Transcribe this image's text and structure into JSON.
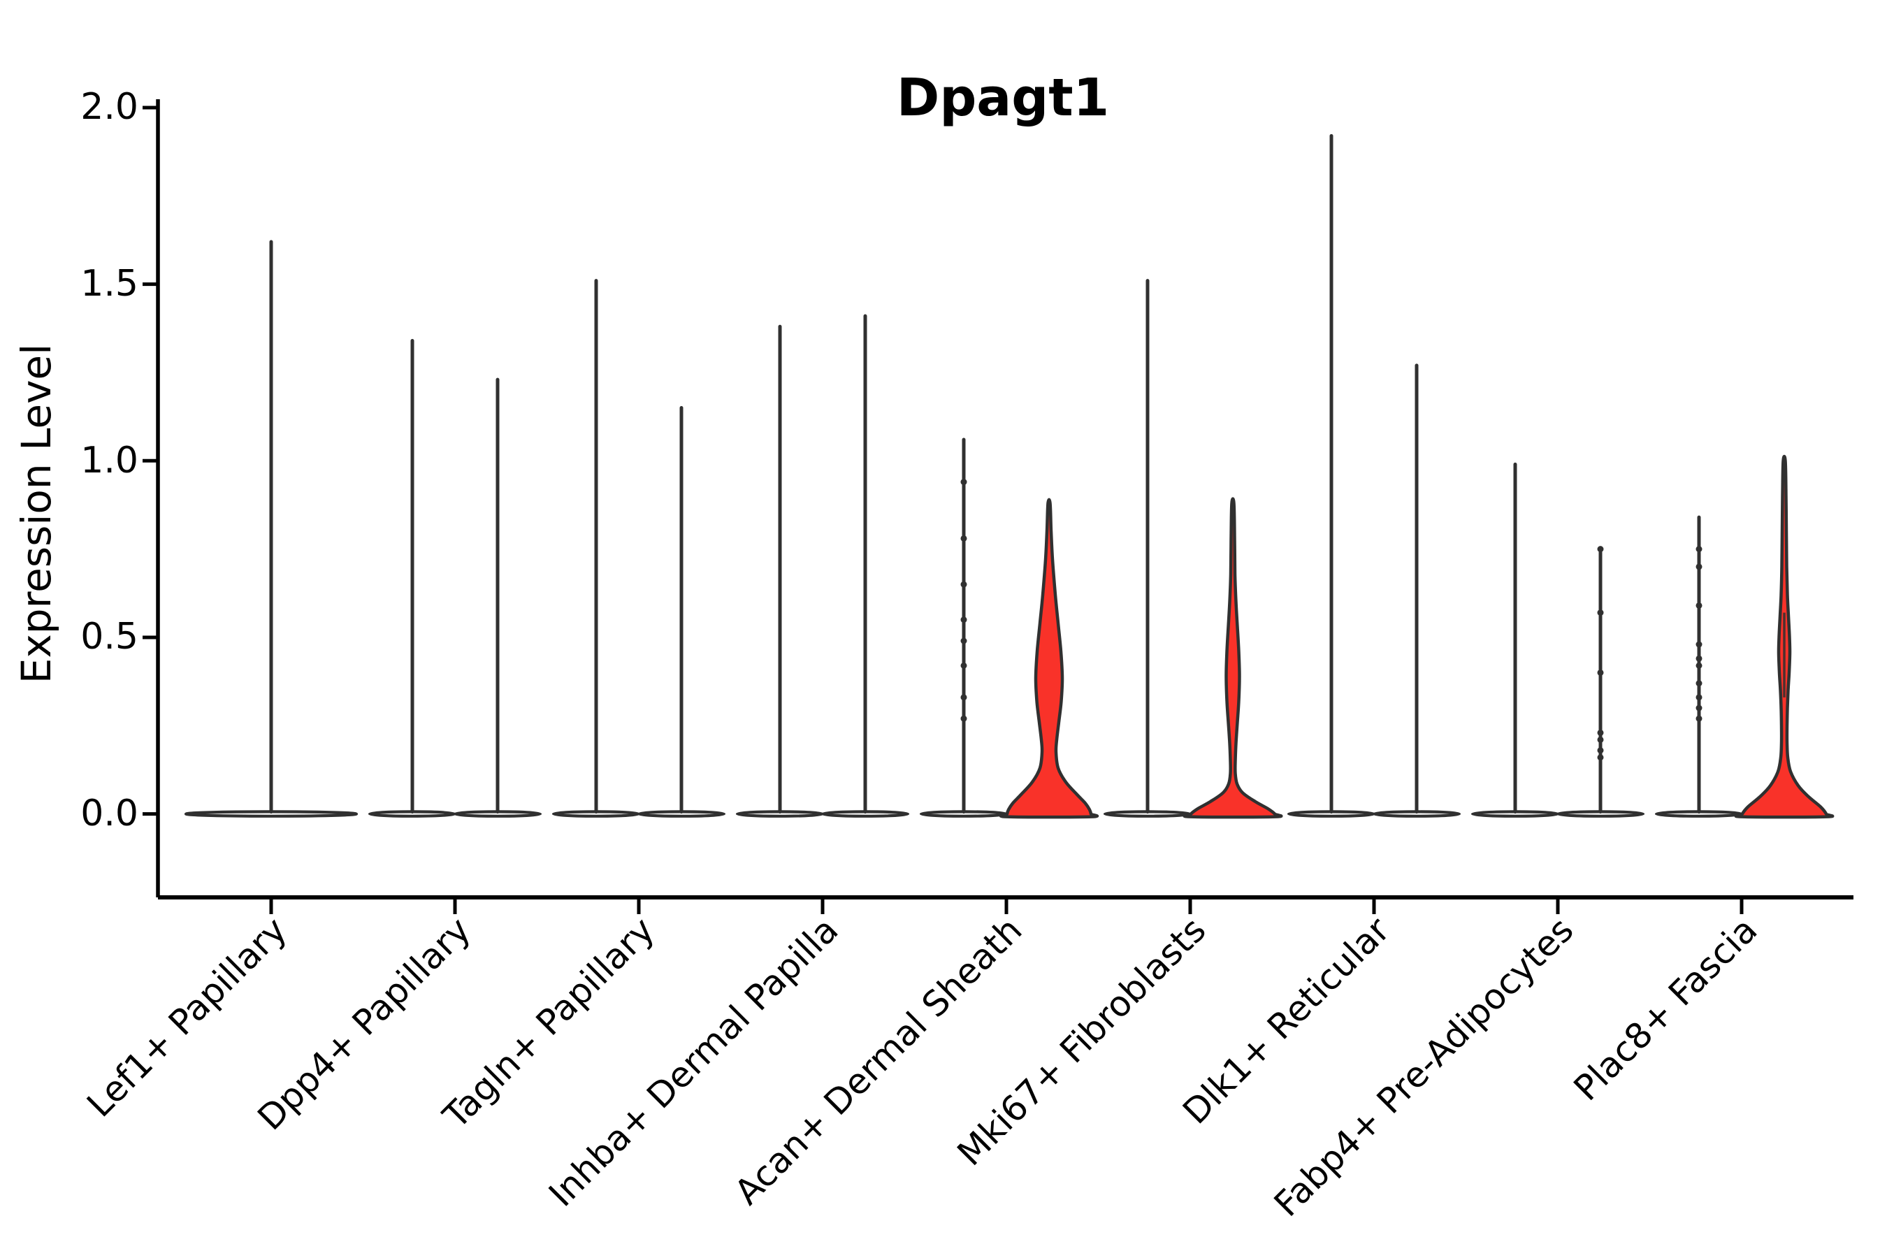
{
  "title": "Dpagt1",
  "y_axis": {
    "label": "Expression Level",
    "tick_labels": [
      "0.0",
      "0.5",
      "1.0",
      "1.5",
      "2.0"
    ]
  },
  "chart_data": {
    "type": "violin",
    "title": "Dpagt1",
    "xlabel": "",
    "ylabel": "Expression Level",
    "ylim": [
      0,
      2.0
    ],
    "yticks": [
      0.0,
      0.5,
      1.0,
      1.5,
      2.0
    ],
    "grid": false,
    "legend": "none",
    "categories": [
      "Lef1+ Papillary",
      "Dpp4+ Papillary",
      "Tagln+ Papillary",
      "Inhba+ Dermal Papilla",
      "Acan+ Dermal Sheath",
      "Mki67+ Fibroblasts",
      "Dlk1+ Reticular",
      "Fabp4+ Pre-Adipocytes",
      "Plac8+ Fascia"
    ],
    "colors": {
      "outline": "#303030",
      "highlight_fill": "#f93229",
      "plain_fill": "#ffffff",
      "axis": "#000000"
    },
    "violins": [
      {
        "category": "Lef1+ Papillary",
        "slot": "center",
        "max_expression": 1.62,
        "highlighted": false,
        "dots": []
      },
      {
        "category": "Dpp4+ Papillary",
        "slot": "left",
        "max_expression": 1.34,
        "highlighted": false,
        "dots": []
      },
      {
        "category": "Dpp4+ Papillary",
        "slot": "right",
        "max_expression": 1.23,
        "highlighted": false,
        "dots": []
      },
      {
        "category": "Tagln+ Papillary",
        "slot": "left",
        "max_expression": 1.51,
        "highlighted": false,
        "dots": []
      },
      {
        "category": "Tagln+ Papillary",
        "slot": "right",
        "max_expression": 1.15,
        "highlighted": false,
        "dots": []
      },
      {
        "category": "Inhba+ Dermal Papilla",
        "slot": "left",
        "max_expression": 1.38,
        "highlighted": false,
        "dots": []
      },
      {
        "category": "Inhba+ Dermal Papilla",
        "slot": "right",
        "max_expression": 1.41,
        "highlighted": false,
        "dots": []
      },
      {
        "category": "Acan+ Dermal Sheath",
        "slot": "left",
        "max_expression": 1.06,
        "highlighted": false,
        "dots": [
          0.94,
          0.78,
          0.65,
          0.55,
          0.49,
          0.42,
          0.33,
          0.27
        ]
      },
      {
        "category": "Acan+ Dermal Sheath",
        "slot": "right",
        "max_expression": 0.88,
        "highlighted": true,
        "dots": [],
        "profile": [
          [
            0.88,
            1.5
          ],
          [
            0.8,
            3
          ],
          [
            0.72,
            5
          ],
          [
            0.62,
            9
          ],
          [
            0.54,
            13
          ],
          [
            0.46,
            17
          ],
          [
            0.385,
            19
          ],
          [
            0.32,
            17.5
          ],
          [
            0.26,
            14
          ],
          [
            0.21,
            11
          ],
          [
            0.175,
            10
          ],
          [
            0.13,
            13
          ],
          [
            0.09,
            24
          ],
          [
            0.055,
            40
          ],
          [
            0.03,
            52
          ],
          [
            0.012,
            58
          ],
          [
            0.0,
            60
          ],
          [
            -0.008,
            60
          ]
        ]
      },
      {
        "category": "Mki67+ Fibroblasts",
        "slot": "left",
        "max_expression": 1.51,
        "highlighted": false,
        "dots": []
      },
      {
        "category": "Mki67+ Fibroblasts",
        "slot": "right",
        "max_expression": 0.88,
        "highlighted": true,
        "dots": [],
        "profile": [
          [
            0.88,
            1.5
          ],
          [
            0.78,
            2.5
          ],
          [
            0.68,
            3
          ],
          [
            0.6,
            4.5
          ],
          [
            0.53,
            6.5
          ],
          [
            0.46,
            8.5
          ],
          [
            0.39,
            9.5
          ],
          [
            0.32,
            8.5
          ],
          [
            0.26,
            6.5
          ],
          [
            0.2,
            4.5
          ],
          [
            0.15,
            3.5
          ],
          [
            0.115,
            3.5
          ],
          [
            0.085,
            6
          ],
          [
            0.06,
            14
          ],
          [
            0.035,
            32
          ],
          [
            0.015,
            50
          ],
          [
            0.0,
            60
          ],
          [
            -0.008,
            60
          ]
        ]
      },
      {
        "category": "Dlk1+ Reticular",
        "slot": "left",
        "max_expression": 1.92,
        "highlighted": false,
        "dots": []
      },
      {
        "category": "Dlk1+ Reticular",
        "slot": "right",
        "max_expression": 1.27,
        "highlighted": false,
        "dots": []
      },
      {
        "category": "Fabp4+ Pre-Adipocytes",
        "slot": "left",
        "max_expression": 0.99,
        "highlighted": false,
        "dots": []
      },
      {
        "category": "Fabp4+ Pre-Adipocytes",
        "slot": "right",
        "max_expression": 0.75,
        "highlighted": false,
        "dots": [
          0.75,
          0.57,
          0.4,
          0.23,
          0.21,
          0.18,
          0.16
        ]
      },
      {
        "category": "Plac8+ Fascia",
        "slot": "left",
        "max_expression": 0.84,
        "highlighted": false,
        "dots": [
          0.75,
          0.7,
          0.59,
          0.48,
          0.44,
          0.42,
          0.37,
          0.33,
          0.3,
          0.27
        ]
      },
      {
        "category": "Plac8+ Fascia",
        "slot": "right",
        "max_expression": 1.0,
        "highlighted": true,
        "dots": [],
        "core": [
          0.57,
          0.33
        ],
        "profile": [
          [
            1.0,
            1.5
          ],
          [
            0.9,
            2.5
          ],
          [
            0.8,
            3
          ],
          [
            0.7,
            3.5
          ],
          [
            0.62,
            4.5
          ],
          [
            0.56,
            6
          ],
          [
            0.5,
            7.5
          ],
          [
            0.455,
            8
          ],
          [
            0.4,
            7
          ],
          [
            0.35,
            5.5
          ],
          [
            0.3,
            4.5
          ],
          [
            0.25,
            4
          ],
          [
            0.2,
            4
          ],
          [
            0.16,
            5
          ],
          [
            0.12,
            9
          ],
          [
            0.08,
            20
          ],
          [
            0.05,
            34
          ],
          [
            0.02,
            52
          ],
          [
            0.0,
            60
          ],
          [
            -0.008,
            60
          ]
        ]
      }
    ]
  }
}
